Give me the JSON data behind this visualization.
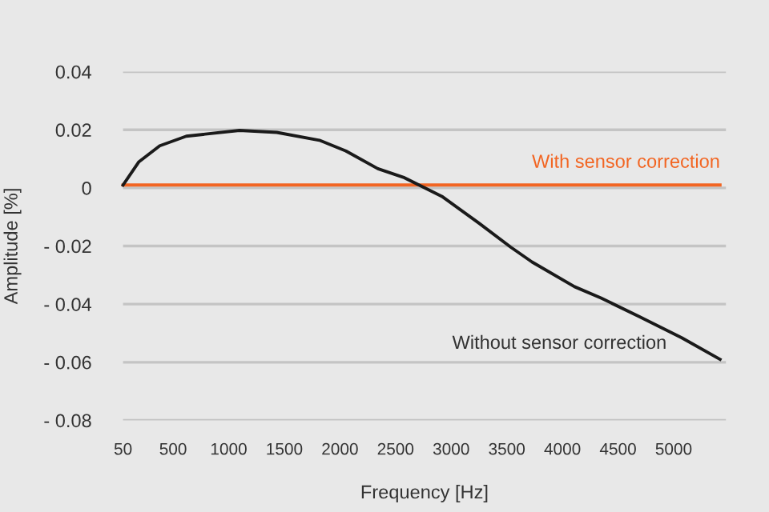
{
  "chart_data": {
    "type": "line",
    "xlabel": "Frequency [Hz]",
    "ylabel": "Amplitude [%]",
    "series": [
      {
        "name": "With sensor correction",
        "color": "#f26522",
        "x": [
          50,
          5417
        ],
        "values": [
          0.001,
          0.001
        ]
      },
      {
        "name": "Without sensor correction",
        "color": "#1a1a1a",
        "x": [
          50,
          193,
          380,
          619,
          1097,
          1432,
          1815,
          2054,
          2341,
          2580,
          2725,
          2916,
          3249,
          3536,
          3727,
          4109,
          4347,
          4691,
          5073,
          5417
        ],
        "values": [
          0.001,
          0.009,
          0.0145,
          0.0178,
          0.0198,
          0.0191,
          0.0164,
          0.0127,
          0.0066,
          0.0035,
          0.0007,
          -0.0029,
          -0.0121,
          -0.0204,
          -0.0255,
          -0.034,
          -0.0379,
          -0.0443,
          -0.0516,
          -0.059
        ]
      }
    ],
    "xlim": [
      50,
      5470
    ],
    "xticks": [
      50,
      500,
      1000,
      1500,
      2000,
      2500,
      3000,
      3500,
      4000,
      4500,
      5000
    ],
    "ylim": [
      -0.08,
      0.04
    ],
    "yticks": [
      0.04,
      0.02,
      0,
      {
        "value": -0.02,
        "label": "- 0.02"
      },
      {
        "value": -0.04,
        "label": "- 0.04"
      },
      {
        "value": -0.06,
        "label": "- 0.06"
      },
      {
        "value": -0.08,
        "label": "- 0.08"
      }
    ],
    "grid": "y",
    "legend": false,
    "marker": "none",
    "line_style": "solid"
  }
}
